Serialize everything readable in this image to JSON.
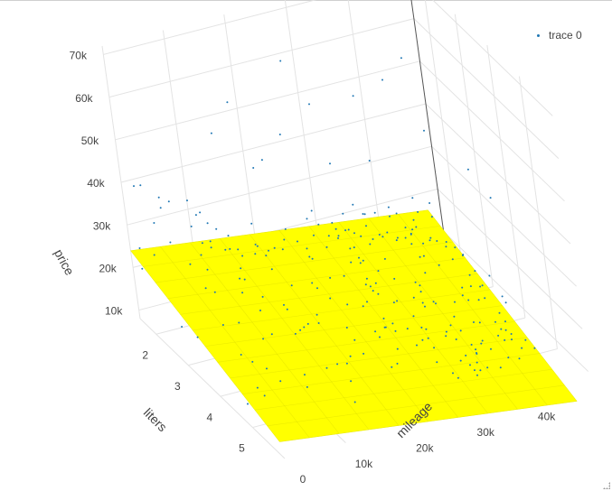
{
  "chart_data": {
    "type": "scatter3d",
    "axes": {
      "x": {
        "label": "mileage",
        "ticks": [
          0,
          10000,
          20000,
          30000,
          40000
        ],
        "tick_labels": [
          "0",
          "10k",
          "20k",
          "30k",
          "40k"
        ],
        "range": [
          0,
          50000
        ]
      },
      "y": {
        "label": "liters",
        "ticks": [
          2,
          3,
          4,
          5
        ],
        "tick_labels": [
          "2",
          "3",
          "4",
          "5"
        ],
        "range": [
          1.5,
          6.0
        ]
      },
      "z": {
        "label": "price",
        "ticks": [
          10000,
          20000,
          30000,
          40000,
          50000,
          60000,
          70000
        ],
        "tick_labels": [
          "10k",
          "20k",
          "30k",
          "40k",
          "50k",
          "60k",
          "70k"
        ],
        "range": [
          8000,
          72000
        ]
      }
    },
    "grid": true,
    "legend": {
      "position": "top-right",
      "entries": [
        "trace 0"
      ]
    },
    "series": [
      {
        "name": "trace 0",
        "mode": "markers",
        "color": "#1f77b4",
        "marker_size": 2
      }
    ],
    "surface": {
      "color": "#ffff00",
      "description": "fitted regression plane"
    }
  },
  "colors": {
    "marker": "#1f77b4",
    "surface": "#ffff00",
    "grid": "#e3e3e3",
    "text": "#444444"
  }
}
